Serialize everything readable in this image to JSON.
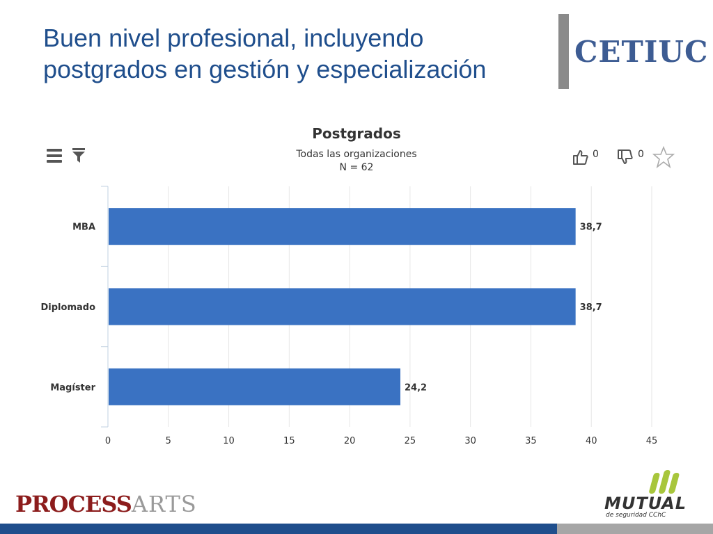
{
  "slide": {
    "title_lines": [
      "Buen nivel profesional, incluyendo",
      "postgrados en gestión y especialización"
    ]
  },
  "logos": {
    "cetiuc": "CETIUC",
    "processarts_part1": "PROCESS",
    "processarts_part2": "ARTS",
    "mutual_name": "MUTUAL",
    "mutual_tagline": "de seguridad CChC"
  },
  "toolbar": {
    "like_count": "0",
    "dislike_count": "0",
    "icons": [
      "menu-icon",
      "filter-icon",
      "thumbs-up-icon",
      "thumbs-down-icon",
      "star-icon"
    ]
  },
  "chart_data": {
    "type": "bar",
    "orientation": "horizontal",
    "title": "Postgrados",
    "subtitle_lines": [
      "Todas las organizaciones",
      "N = 62"
    ],
    "categories": [
      "MBA",
      "Diplomado",
      "Magíster"
    ],
    "values": [
      38.7,
      38.7,
      24.2
    ],
    "value_labels": [
      "38,7",
      "38,7",
      "24,2"
    ],
    "xlim": [
      0,
      45
    ],
    "xticks": [
      0,
      5,
      10,
      15,
      20,
      25,
      30,
      35,
      40,
      45
    ],
    "grid": true,
    "legend": "none",
    "bar_color": "#3a72c2"
  },
  "colors": {
    "title": "#1f4e8c",
    "band_blue": "#1f4e8c",
    "band_gray": "#a6a6a6",
    "mutual_green": "#a8c63c"
  }
}
